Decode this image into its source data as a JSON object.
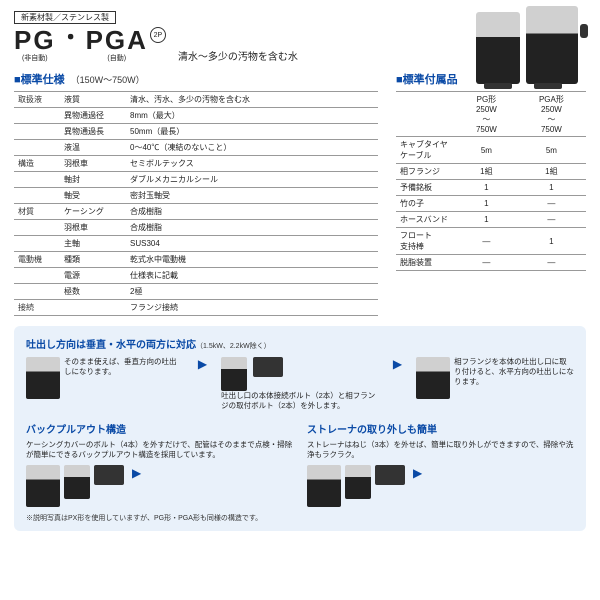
{
  "header": {
    "tag": "新素材製／ステンレス製",
    "model1": "PG",
    "model1_sub": "(非自動)",
    "model2": "PGA",
    "model2_sub": "(自動)",
    "phase": "2P",
    "subtitle": "清水～多少の汚物を含む水"
  },
  "spec": {
    "title": "■標準仕様",
    "note": "（150W～750W）",
    "rows": [
      {
        "cat": "取扱液",
        "lab": "液質",
        "val": "清水、汚水、多少の汚物を含む水"
      },
      {
        "cat": "",
        "lab": "異物通過径",
        "val": "8mm（最大）"
      },
      {
        "cat": "",
        "lab": "異物通過長",
        "val": "50mm（最長）"
      },
      {
        "cat": "",
        "lab": "液温",
        "val": "0～40℃（凍結のないこと）"
      },
      {
        "cat": "構造",
        "lab": "羽根車",
        "val": "セミボルテックス"
      },
      {
        "cat": "",
        "lab": "軸封",
        "val": "ダブルメカニカルシール"
      },
      {
        "cat": "",
        "lab": "軸受",
        "val": "密封玉軸受"
      },
      {
        "cat": "材質",
        "lab": "ケーシング",
        "val": "合成樹脂"
      },
      {
        "cat": "",
        "lab": "羽根車",
        "val": "合成樹脂"
      },
      {
        "cat": "",
        "lab": "主軸",
        "val": "SUS304"
      },
      {
        "cat": "電動機",
        "lab": "種類",
        "val": "乾式水中電動機"
      },
      {
        "cat": "",
        "lab": "電源",
        "val": "仕様表に記載"
      },
      {
        "cat": "",
        "lab": "極数",
        "val": "2極"
      },
      {
        "cat": "接続",
        "lab": "",
        "val": "フランジ接続"
      }
    ]
  },
  "acc": {
    "title": "■標準付属品",
    "head": [
      "",
      "PG形\n250W\n～\n750W",
      "PGA形\n250W\n～\n750W"
    ],
    "rows": [
      [
        "キャブタイヤ\nケーブル",
        "5m",
        "5m"
      ],
      [
        "相フランジ",
        "1組",
        "1組"
      ],
      [
        "予備銘板",
        "1",
        "1"
      ],
      [
        "竹の子",
        "1",
        "―"
      ],
      [
        "ホースバンド",
        "1",
        "―"
      ],
      [
        "フロート\n支持棒",
        "―",
        "1"
      ],
      [
        "脱脂装置",
        "―",
        "―"
      ]
    ]
  },
  "feat": {
    "title1": "吐出し方向は垂直・水平の両方に対応",
    "title1_note": "（1.5kW、2.2kW除く）",
    "d1": "そのまま使えば、垂直方向の吐出しになります。",
    "d2": "吐出し口の本体接続ボルト（2本）と相フランジの取付ボルト（2本）を外します。",
    "d3": "相フランジを本体の吐出し口に取り付けると、水平方向の吐出しになります。",
    "title2": "バックプルアウト構造",
    "d4": "ケーシングカバーのボルト（4本）を外すだけで、配管はそのままで点検・掃除が簡単にできるバックプルアウト構造を採用しています。",
    "title3": "ストレーナの取り外しも簡単",
    "d5": "ストレーナはねじ（3本）を外せば、簡単に取り外しができますので、掃除や洗浄もラクラク。",
    "footnote": "※説明写真はPX形を使用していますが、PG形・PGA形も同様の構造です。"
  }
}
